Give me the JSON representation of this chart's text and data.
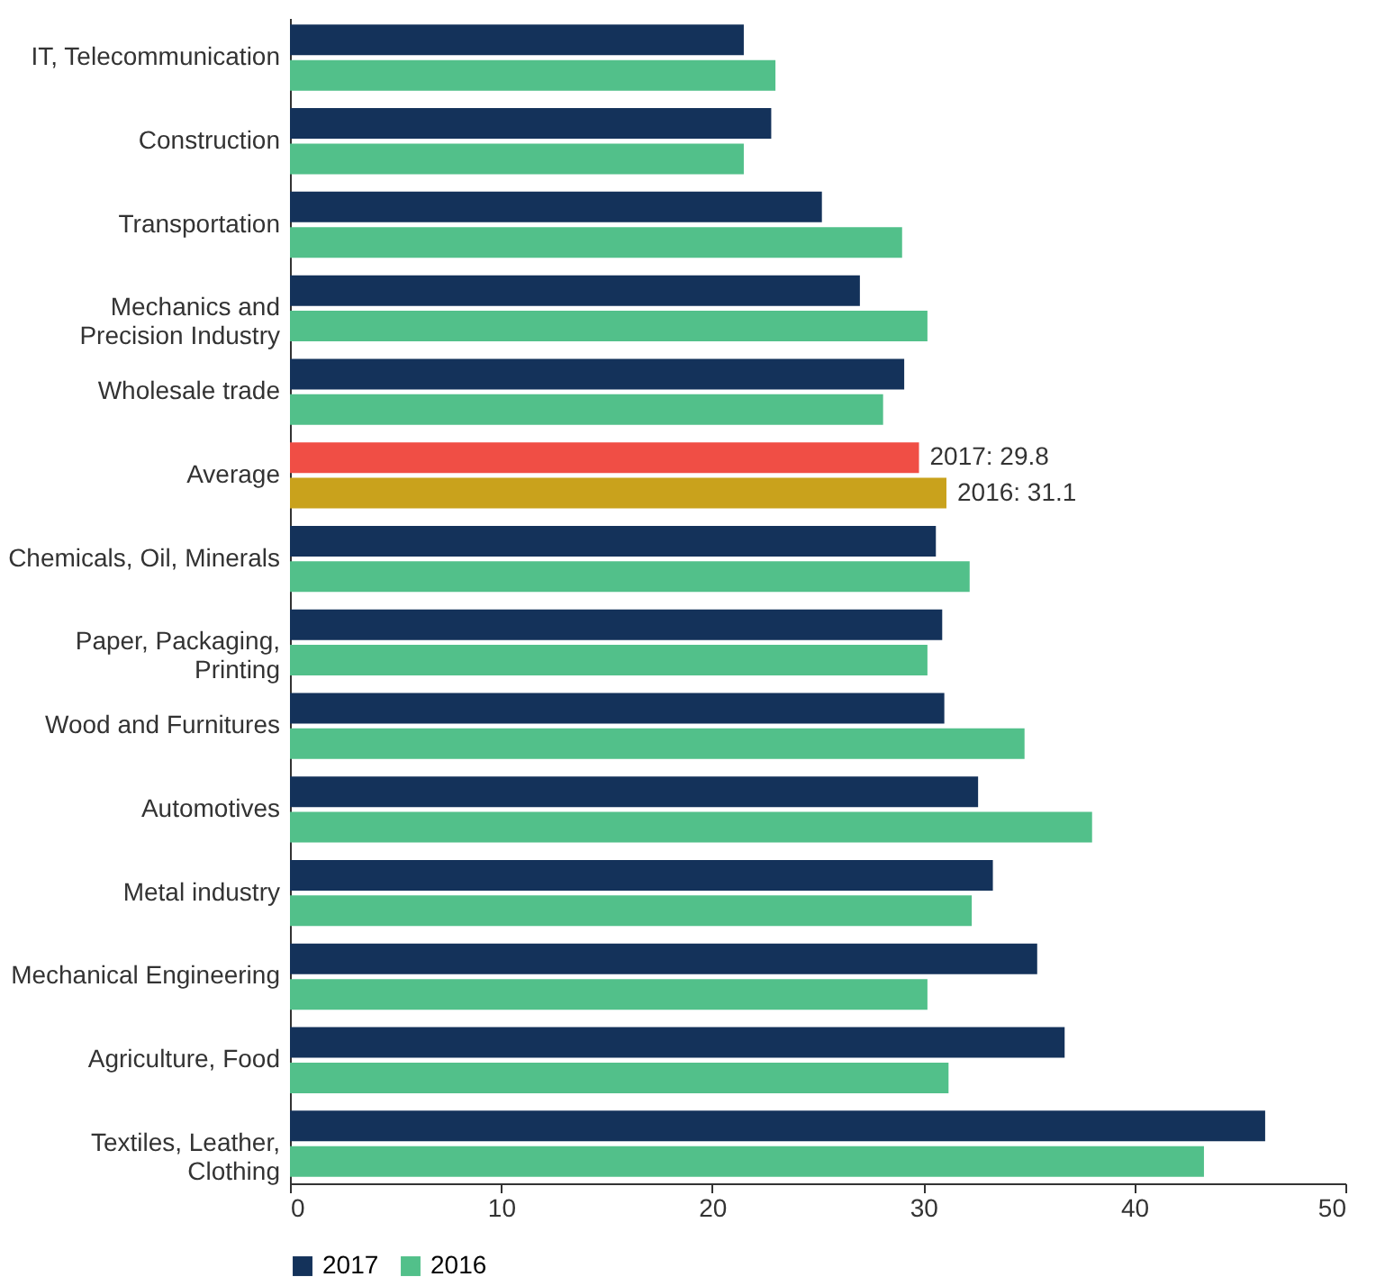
{
  "chart_data": {
    "type": "bar",
    "orientation": "horizontal",
    "categories": [
      "IT, Telecommunication",
      "Construction",
      "Transportation",
      "Mechanics and\nPrecision Industry",
      "Wholesale trade",
      "Average",
      "Chemicals, Oil, Minerals",
      "Paper, Packaging,\nPrinting",
      "Wood and Furnitures",
      "Automotives",
      "Metal industry",
      "Mechanical Engineering",
      "Agriculture, Food",
      "Textiles, Leather,\nClothing"
    ],
    "series": [
      {
        "name": "2017",
        "color": "#14325a",
        "colors": [
          "#14325a",
          "#14325a",
          "#14325a",
          "#14325a",
          "#14325a",
          "#f04e45",
          "#14325a",
          "#14325a",
          "#14325a",
          "#14325a",
          "#14325a",
          "#14325a",
          "#14325a",
          "#14325a"
        ],
        "values": [
          21.5,
          22.8,
          25.2,
          27.0,
          29.1,
          29.8,
          30.6,
          30.9,
          31.0,
          32.6,
          33.3,
          35.4,
          36.7,
          46.2
        ],
        "value_labels": [
          null,
          null,
          null,
          null,
          null,
          "2017: 29.8",
          null,
          null,
          null,
          null,
          null,
          null,
          null,
          null
        ]
      },
      {
        "name": "2016",
        "color": "#52c08a",
        "colors": [
          "#52c08a",
          "#52c08a",
          "#52c08a",
          "#52c08a",
          "#52c08a",
          "#c9a21c",
          "#52c08a",
          "#52c08a",
          "#52c08a",
          "#52c08a",
          "#52c08a",
          "#52c08a",
          "#52c08a",
          "#52c08a"
        ],
        "values": [
          23.0,
          21.5,
          29.0,
          30.2,
          28.1,
          31.1,
          32.2,
          30.2,
          34.8,
          38.0,
          32.3,
          30.2,
          31.2,
          43.3
        ],
        "value_labels": [
          null,
          null,
          null,
          null,
          null,
          "2016: 31.1",
          null,
          null,
          null,
          null,
          null,
          null,
          null,
          null
        ]
      }
    ],
    "xlim": [
      0,
      50
    ],
    "xticks": [
      0,
      10,
      20,
      30,
      40,
      50
    ],
    "grid": false,
    "legend": "bottom left"
  }
}
